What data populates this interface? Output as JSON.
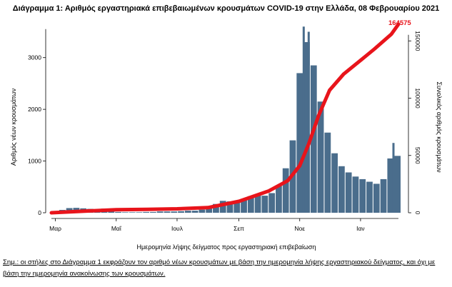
{
  "title": "Διάγραμμα 1: Αριθμός εργαστηριακά επιβεβαιωμένων κρουσμάτων COVID-19 στην Ελλάδα, 08 Φεβρουαρίου 2021",
  "note": "Σημ.: οι στήλες στο Διάγραμμα 1 εκφράζουν τον αριθμό νέων κρουσμάτων με βάση την ημερομηνία λήψης εργαστηριακού δείγματος, και όχι με βάση την ημερομηνία ανακοίνωσης των κρουσμάτων.",
  "colors": {
    "bars": "#4a6d8c",
    "cumulative": "#e8141b",
    "axis": "#000000"
  },
  "chart_data": {
    "type": "bar+line",
    "title": "Διάγραμμα 1: Αριθμός εργαστηριακά επιβεβαιωμένων κρουσμάτων COVID-19 στην Ελλάδα, 08 Φεβρουαρίου 2021",
    "xlabel": "Ημερομηνία λήψης δείγματος προς εργαστηριακή επιβεβαίωση",
    "ylabel_left": "Αριθμός νέων κρουσμάτων",
    "ylabel_right": "Συνολικός αριθμός κρουσμάτων",
    "x_ticks": [
      "Μαρ",
      "Μαΐ",
      "Ιουλ",
      "Σεπ",
      "Νοε",
      "Ιαν"
    ],
    "x_range": [
      "2020-02-26",
      "2021-02-08"
    ],
    "yleft_ticks": [
      0,
      1000,
      2000,
      3000
    ],
    "yleft_range": [
      0,
      3700
    ],
    "yright_ticks": [
      0,
      50000,
      100000,
      150000
    ],
    "yright_range": [
      0,
      167000
    ],
    "final_cumulative_label": "164575",
    "weekly_new_cases": [
      [
        "2020-03-01",
        20
      ],
      [
        "2020-03-08",
        55
      ],
      [
        "2020-03-15",
        90
      ],
      [
        "2020-03-22",
        95
      ],
      [
        "2020-03-29",
        85
      ],
      [
        "2020-04-05",
        75
      ],
      [
        "2020-04-12",
        60
      ],
      [
        "2020-04-19",
        80
      ],
      [
        "2020-04-26",
        25
      ],
      [
        "2020-05-03",
        15
      ],
      [
        "2020-05-10",
        10
      ],
      [
        "2020-05-17",
        10
      ],
      [
        "2020-05-24",
        10
      ],
      [
        "2020-05-31",
        15
      ],
      [
        "2020-06-07",
        15
      ],
      [
        "2020-06-14",
        25
      ],
      [
        "2020-06-21",
        25
      ],
      [
        "2020-06-28",
        25
      ],
      [
        "2020-07-05",
        30
      ],
      [
        "2020-07-12",
        40
      ],
      [
        "2020-07-19",
        40
      ],
      [
        "2020-07-26",
        60
      ],
      [
        "2020-08-02",
        110
      ],
      [
        "2020-08-09",
        170
      ],
      [
        "2020-08-16",
        230
      ],
      [
        "2020-08-23",
        220
      ],
      [
        "2020-08-30",
        210
      ],
      [
        "2020-09-06",
        270
      ],
      [
        "2020-09-13",
        320
      ],
      [
        "2020-09-20",
        330
      ],
      [
        "2020-09-27",
        330
      ],
      [
        "2020-10-04",
        380
      ],
      [
        "2020-10-11",
        520
      ],
      [
        "2020-10-18",
        860
      ],
      [
        "2020-10-25",
        1400
      ],
      [
        "2020-11-01",
        2700
      ],
      [
        "2020-11-08",
        3300
      ],
      [
        "2020-11-15",
        2850
      ],
      [
        "2020-11-22",
        2150
      ],
      [
        "2020-11-29",
        1550
      ],
      [
        "2020-12-06",
        1150
      ],
      [
        "2020-12-13",
        900
      ],
      [
        "2020-12-20",
        780
      ],
      [
        "2020-12-27",
        700
      ],
      [
        "2021-01-03",
        650
      ],
      [
        "2021-01-10",
        600
      ],
      [
        "2021-01-17",
        560
      ],
      [
        "2021-01-24",
        650
      ],
      [
        "2021-01-31",
        1050
      ],
      [
        "2021-02-07",
        1100
      ]
    ],
    "peak_bar_labels": [
      [
        "2020-11-05",
        3600
      ],
      [
        "2020-11-10",
        3500
      ],
      [
        "2021-02-03",
        1350
      ]
    ],
    "cumulative_cases": [
      [
        "2020-02-26",
        0
      ],
      [
        "2020-04-01",
        1500
      ],
      [
        "2020-05-01",
        2600
      ],
      [
        "2020-06-01",
        3000
      ],
      [
        "2020-07-01",
        3400
      ],
      [
        "2020-08-01",
        4500
      ],
      [
        "2020-09-01",
        10000
      ],
      [
        "2020-10-01",
        19000
      ],
      [
        "2020-10-20",
        28000
      ],
      [
        "2020-11-01",
        41000
      ],
      [
        "2020-11-10",
        60000
      ],
      [
        "2020-11-20",
        85000
      ],
      [
        "2020-12-01",
        107000
      ],
      [
        "2020-12-15",
        121000
      ],
      [
        "2021-01-01",
        133000
      ],
      [
        "2021-01-15",
        143000
      ],
      [
        "2021-02-01",
        156000
      ],
      [
        "2021-02-08",
        164575
      ]
    ],
    "legend": "none",
    "grid": false
  }
}
